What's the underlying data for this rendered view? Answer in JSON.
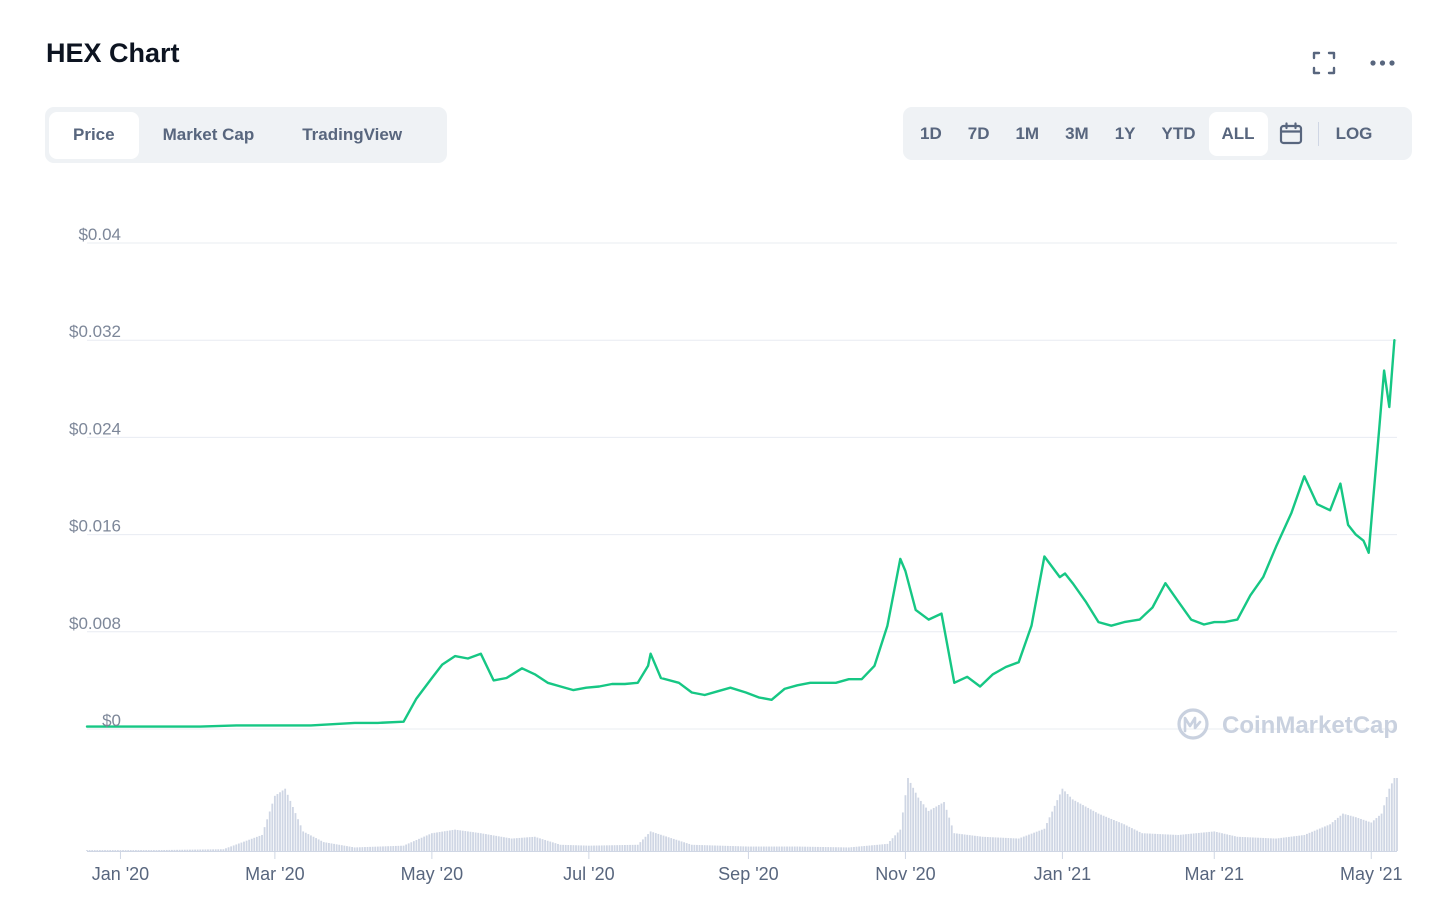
{
  "header": {
    "title": "HEX Chart"
  },
  "icons": {
    "expand": "expand-icon",
    "more": "more-options-icon",
    "calendar": "calendar-icon",
    "logo": "coinmarketcap-logo-icon"
  },
  "tabs": [
    {
      "label": "Price",
      "active": true
    },
    {
      "label": "Market Cap",
      "active": false
    },
    {
      "label": "TradingView",
      "active": false
    }
  ],
  "ranges": [
    {
      "label": "1D",
      "active": false
    },
    {
      "label": "7D",
      "active": false
    },
    {
      "label": "1M",
      "active": false
    },
    {
      "label": "3M",
      "active": false
    },
    {
      "label": "1Y",
      "active": false
    },
    {
      "label": "YTD",
      "active": false
    },
    {
      "label": "ALL",
      "active": true
    }
  ],
  "log_label": "LOG",
  "watermark": "CoinMarketCap",
  "colors": {
    "line": "#16c784",
    "volume": "#cfd6e4",
    "grid": "#e8ecf2",
    "button_bg": "#eff2f5",
    "text_muted": "#58667e"
  },
  "chart_data": {
    "type": "line",
    "title": "HEX Chart",
    "y_tick_labels": [
      "$0",
      "$0.008",
      "$0.016",
      "$0.024",
      "$0.032",
      "$0.04"
    ],
    "ylim": [
      0,
      0.04
    ],
    "x_tick_labels": [
      "Jan '20",
      "Mar '20",
      "May '20",
      "Jul '20",
      "Sep '20",
      "Nov '20",
      "Jan '21",
      "Mar '21",
      "May '21"
    ],
    "x_tick_dates": [
      "2020-01-01",
      "2020-03-01",
      "2020-05-01",
      "2020-07-01",
      "2020-09-01",
      "2020-11-01",
      "2021-01-01",
      "2021-03-01",
      "2021-05-01"
    ],
    "xlim": [
      "2019-12-19",
      "2021-05-11"
    ],
    "grid": true,
    "series": [
      {
        "name": "Price",
        "x": [
          "2019-12-19",
          "2020-01-01",
          "2020-02-01",
          "2020-02-15",
          "2020-03-01",
          "2020-03-15",
          "2020-04-01",
          "2020-04-10",
          "2020-04-20",
          "2020-04-25",
          "2020-05-01",
          "2020-05-05",
          "2020-05-10",
          "2020-05-15",
          "2020-05-20",
          "2020-05-25",
          "2020-05-30",
          "2020-06-05",
          "2020-06-10",
          "2020-06-15",
          "2020-06-20",
          "2020-06-25",
          "2020-06-30",
          "2020-07-05",
          "2020-07-10",
          "2020-07-15",
          "2020-07-20",
          "2020-07-24",
          "2020-07-25",
          "2020-07-29",
          "2020-08-05",
          "2020-08-10",
          "2020-08-15",
          "2020-08-20",
          "2020-08-25",
          "2020-08-31",
          "2020-09-05",
          "2020-09-10",
          "2020-09-15",
          "2020-09-20",
          "2020-09-25",
          "2020-10-01",
          "2020-10-05",
          "2020-10-10",
          "2020-10-15",
          "2020-10-20",
          "2020-10-25",
          "2020-10-30",
          "2020-11-01",
          "2020-11-05",
          "2020-11-10",
          "2020-11-15",
          "2020-11-20",
          "2020-11-25",
          "2020-11-30",
          "2020-12-05",
          "2020-12-10",
          "2020-12-15",
          "2020-12-20",
          "2020-12-25",
          "2020-12-31",
          "2021-01-02",
          "2021-01-05",
          "2021-01-10",
          "2021-01-15",
          "2021-01-20",
          "2021-01-25",
          "2021-01-31",
          "2021-02-05",
          "2021-02-10",
          "2021-02-15",
          "2021-02-20",
          "2021-02-25",
          "2021-03-01",
          "2021-03-05",
          "2021-03-10",
          "2021-03-15",
          "2021-03-20",
          "2021-03-25",
          "2021-03-31",
          "2021-04-05",
          "2021-04-10",
          "2021-04-15",
          "2021-04-19",
          "2021-04-22",
          "2021-04-25",
          "2021-04-28",
          "2021-04-30",
          "2021-05-02",
          "2021-05-04",
          "2021-05-06",
          "2021-05-08",
          "2021-05-10"
        ],
        "y": [
          0.0002,
          0.0002,
          0.0002,
          0.0003,
          0.0003,
          0.0003,
          0.0005,
          0.0005,
          0.0006,
          0.0025,
          0.0042,
          0.0053,
          0.006,
          0.0058,
          0.0062,
          0.004,
          0.0042,
          0.005,
          0.0045,
          0.0038,
          0.0035,
          0.0032,
          0.0034,
          0.0035,
          0.0037,
          0.0037,
          0.0038,
          0.0052,
          0.0062,
          0.0042,
          0.0038,
          0.003,
          0.0028,
          0.0031,
          0.0034,
          0.003,
          0.0026,
          0.0024,
          0.0033,
          0.0036,
          0.0038,
          0.0038,
          0.0038,
          0.0041,
          0.0041,
          0.0052,
          0.0085,
          0.014,
          0.013,
          0.0098,
          0.009,
          0.0095,
          0.0038,
          0.0043,
          0.0035,
          0.0045,
          0.0051,
          0.0055,
          0.0085,
          0.0142,
          0.0125,
          0.0128,
          0.012,
          0.0105,
          0.0088,
          0.0085,
          0.0088,
          0.009,
          0.01,
          0.012,
          0.0105,
          0.009,
          0.0086,
          0.0088,
          0.0088,
          0.009,
          0.011,
          0.0125,
          0.015,
          0.0178,
          0.0208,
          0.0185,
          0.018,
          0.0202,
          0.0168,
          0.016,
          0.0155,
          0.0145,
          0.0195,
          0.0245,
          0.0295,
          0.0265,
          0.032
        ]
      },
      {
        "name": "Volume",
        "relative": true,
        "x": [
          "2019-12-19",
          "2020-01-15",
          "2020-02-10",
          "2020-02-25",
          "2020-03-01",
          "2020-03-05",
          "2020-03-12",
          "2020-03-20",
          "2020-04-01",
          "2020-04-20",
          "2020-05-01",
          "2020-05-10",
          "2020-05-20",
          "2020-06-01",
          "2020-06-10",
          "2020-06-20",
          "2020-07-01",
          "2020-07-20",
          "2020-07-25",
          "2020-08-10",
          "2020-09-01",
          "2020-09-20",
          "2020-10-10",
          "2020-10-25",
          "2020-10-30",
          "2020-11-02",
          "2020-11-06",
          "2020-11-10",
          "2020-11-16",
          "2020-11-20",
          "2020-12-01",
          "2020-12-15",
          "2020-12-25",
          "2021-01-01",
          "2021-01-05",
          "2021-01-15",
          "2021-01-25",
          "2021-02-01",
          "2021-02-15",
          "2021-03-01",
          "2021-03-10",
          "2021-03-25",
          "2021-04-05",
          "2021-04-15",
          "2021-04-20",
          "2021-04-25",
          "2021-05-01",
          "2021-05-05",
          "2021-05-08",
          "2021-05-10"
        ],
        "y": [
          0.01,
          0.01,
          0.02,
          0.18,
          0.62,
          0.7,
          0.22,
          0.1,
          0.04,
          0.06,
          0.2,
          0.24,
          0.2,
          0.14,
          0.16,
          0.07,
          0.06,
          0.07,
          0.22,
          0.07,
          0.05,
          0.05,
          0.04,
          0.08,
          0.24,
          0.82,
          0.6,
          0.45,
          0.55,
          0.2,
          0.16,
          0.14,
          0.25,
          0.7,
          0.58,
          0.42,
          0.3,
          0.2,
          0.18,
          0.22,
          0.16,
          0.14,
          0.18,
          0.3,
          0.42,
          0.38,
          0.32,
          0.42,
          0.7,
          0.82
        ]
      }
    ]
  }
}
